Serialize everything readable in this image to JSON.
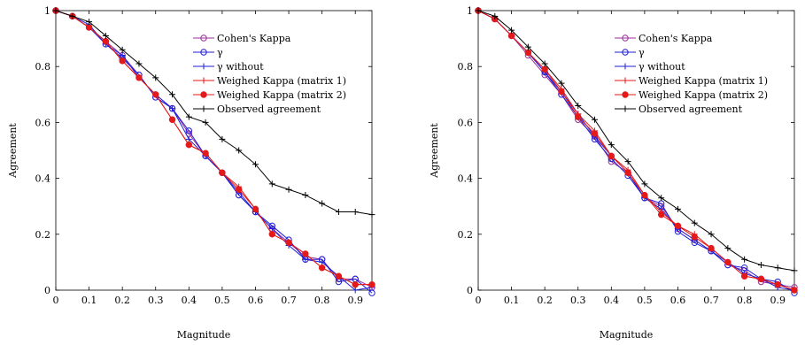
{
  "chart_data": [
    {
      "type": "line",
      "xlabel": "Magnitude",
      "ylabel": "Agreement",
      "xlim": [
        0,
        0.95
      ],
      "ylim": [
        0,
        1
      ],
      "xticks": [
        0,
        0.1,
        0.2,
        0.3,
        0.4,
        0.5,
        0.6,
        0.7,
        0.8,
        0.9
      ],
      "xtick_labels": [
        "0",
        "0.1",
        "0.2",
        "0.3",
        "0.4",
        "0.5",
        "0.6",
        "0.7",
        "0.8",
        "0.9"
      ],
      "yticks": [
        0,
        0.2,
        0.4,
        0.6,
        0.8,
        1
      ],
      "ytick_labels": [
        "0",
        "0.2",
        "0.4",
        "0.6",
        "0.8",
        "1"
      ],
      "legend_position": "top-right",
      "x": [
        0,
        0.05,
        0.1,
        0.15,
        0.2,
        0.25,
        0.3,
        0.35,
        0.4,
        0.45,
        0.5,
        0.55,
        0.6,
        0.65,
        0.7,
        0.75,
        0.8,
        0.85,
        0.9,
        0.95
      ],
      "series": [
        {
          "name": "Cohen's Kappa",
          "color": "#9b2d9b",
          "marker": "circle-open",
          "values": [
            1,
            0.98,
            0.94,
            0.89,
            0.84,
            0.77,
            0.69,
            0.65,
            0.56,
            0.48,
            0.42,
            0.34,
            0.28,
            0.22,
            0.17,
            0.12,
            0.11,
            0.04,
            0.04,
            0.01
          ]
        },
        {
          "name": "γ",
          "color": "#1f1fd6",
          "marker": "circle-open",
          "values": [
            1,
            0.98,
            0.94,
            0.88,
            0.83,
            0.77,
            0.69,
            0.65,
            0.57,
            0.48,
            0.42,
            0.34,
            0.28,
            0.23,
            0.18,
            0.11,
            0.11,
            0.03,
            0.04,
            -0.01
          ]
        },
        {
          "name": "γ without",
          "color": "#1f1fd6",
          "marker": "plus",
          "values": [
            1,
            0.98,
            0.95,
            0.88,
            0.84,
            0.76,
            0.7,
            0.65,
            0.54,
            0.48,
            0.42,
            0.35,
            0.28,
            0.22,
            0.16,
            0.11,
            0.1,
            0.05,
            0,
            0.01
          ]
        },
        {
          "name": "Weighed Kappa (matrix 1)",
          "color": "#e41a1a",
          "marker": "plus",
          "values": [
            1,
            0.98,
            0.94,
            0.89,
            0.82,
            0.76,
            0.7,
            0.61,
            0.52,
            0.49,
            0.42,
            0.37,
            0.29,
            0.2,
            0.17,
            0.13,
            0.08,
            0.05,
            0.02,
            0.02
          ]
        },
        {
          "name": "Weighed Kappa (matrix 2)",
          "color": "#e41a1a",
          "marker": "dot",
          "values": [
            1,
            0.98,
            0.94,
            0.89,
            0.82,
            0.76,
            0.7,
            0.61,
            0.52,
            0.49,
            0.42,
            0.36,
            0.29,
            0.2,
            0.17,
            0.13,
            0.08,
            0.05,
            0.02,
            0.02
          ]
        },
        {
          "name": "Observed agreement",
          "color": "#000000",
          "marker": "plus",
          "values": [
            1,
            0.98,
            0.96,
            0.91,
            0.86,
            0.81,
            0.76,
            0.7,
            0.62,
            0.6,
            0.54,
            0.5,
            0.45,
            0.38,
            0.36,
            0.34,
            0.31,
            0.28,
            0.28,
            0.27
          ]
        }
      ]
    },
    {
      "type": "line",
      "xlabel": "Magnitude",
      "ylabel": "Agreement",
      "xlim": [
        0,
        0.95
      ],
      "ylim": [
        0,
        1
      ],
      "xticks": [
        0,
        0.1,
        0.2,
        0.3,
        0.4,
        0.5,
        0.6,
        0.7,
        0.8,
        0.9
      ],
      "xtick_labels": [
        "0",
        "0.1",
        "0.2",
        "0.3",
        "0.4",
        "0.5",
        "0.6",
        "0.7",
        "0.8",
        "0.9"
      ],
      "yticks": [
        0,
        0.2,
        0.4,
        0.6,
        0.8,
        1
      ],
      "ytick_labels": [
        "0",
        "0.2",
        "0.4",
        "0.6",
        "0.8",
        "1"
      ],
      "legend_position": "top-right",
      "x": [
        0,
        0.05,
        0.1,
        0.15,
        0.2,
        0.25,
        0.3,
        0.35,
        0.4,
        0.45,
        0.5,
        0.55,
        0.6,
        0.65,
        0.7,
        0.75,
        0.8,
        0.85,
        0.9,
        0.95
      ],
      "series": [
        {
          "name": "Cohen's Kappa",
          "color": "#9b2d9b",
          "marker": "circle-open",
          "values": [
            1,
            0.97,
            0.91,
            0.84,
            0.77,
            0.7,
            0.61,
            0.55,
            0.46,
            0.42,
            0.33,
            0.3,
            0.22,
            0.18,
            0.14,
            0.09,
            0.07,
            0.03,
            0.02,
            0.01
          ]
        },
        {
          "name": "γ",
          "color": "#1f1fd6",
          "marker": "circle-open",
          "values": [
            1,
            0.97,
            0.91,
            0.85,
            0.78,
            0.7,
            0.62,
            0.54,
            0.47,
            0.41,
            0.33,
            0.31,
            0.21,
            0.17,
            0.14,
            0.09,
            0.08,
            0.04,
            0.03,
            -0.01
          ]
        },
        {
          "name": "γ without",
          "color": "#1f1fd6",
          "marker": "plus",
          "values": [
            1,
            0.97,
            0.91,
            0.85,
            0.78,
            0.71,
            0.63,
            0.55,
            0.48,
            0.42,
            0.33,
            0.29,
            0.22,
            0.18,
            0.14,
            0.1,
            0.06,
            0.04,
            0.01,
            0
          ]
        },
        {
          "name": "Weighed Kappa (matrix 1)",
          "color": "#e41a1a",
          "marker": "plus",
          "values": [
            1,
            0.97,
            0.91,
            0.85,
            0.79,
            0.72,
            0.63,
            0.57,
            0.48,
            0.43,
            0.34,
            0.28,
            0.23,
            0.2,
            0.15,
            0.1,
            0.05,
            0.04,
            0.02,
            0
          ]
        },
        {
          "name": "Weighed Kappa (matrix 2)",
          "color": "#e41a1a",
          "marker": "dot",
          "values": [
            1,
            0.97,
            0.91,
            0.85,
            0.79,
            0.71,
            0.62,
            0.56,
            0.48,
            0.42,
            0.34,
            0.27,
            0.23,
            0.19,
            0.15,
            0.1,
            0.05,
            0.04,
            0.02,
            0
          ]
        },
        {
          "name": "Observed agreement",
          "color": "#000000",
          "marker": "plus",
          "values": [
            1,
            0.98,
            0.93,
            0.87,
            0.81,
            0.74,
            0.66,
            0.61,
            0.52,
            0.46,
            0.38,
            0.33,
            0.29,
            0.24,
            0.2,
            0.15,
            0.11,
            0.09,
            0.08,
            0.07
          ]
        }
      ]
    }
  ]
}
